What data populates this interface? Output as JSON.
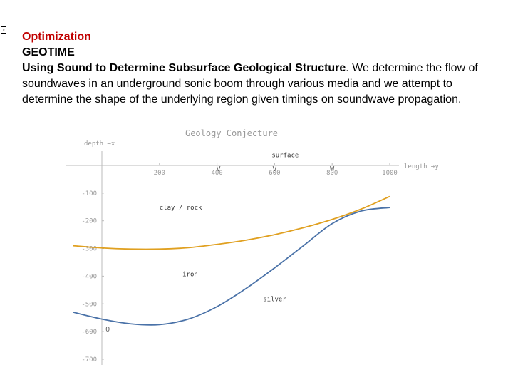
{
  "slide": {
    "bullet_icon": "square-bullet-icon",
    "title": "Optimization",
    "subtitle": "GEOTIME",
    "heading": "Using Sound to Determine Subsurface Geological Structure",
    "body": ". We determine the flow of soundwaves in an underground sonic boom through various media and we attempt to determine the shape of the underlying region given timings on soundwave propagation.",
    "colors": {
      "title": "#c00000",
      "orange_curve": "#e0a020",
      "blue_curve": "#4a72a8",
      "axis": "#999999"
    }
  },
  "chart_data": {
    "type": "line",
    "title": "Geology Conjecture",
    "xlabel": "length →y",
    "ylabel": "depth →x",
    "xlim": [
      -120,
      1000
    ],
    "ylim": [
      -720,
      20
    ],
    "x_ticks": [
      200,
      400,
      600,
      800,
      1000
    ],
    "x_tick_labels": [
      "200",
      "400",
      "600",
      "800",
      "1000"
    ],
    "y_ticks": [
      -100,
      -200,
      -300,
      -400,
      -500,
      -600,
      -700
    ],
    "y_tick_labels": [
      "-100",
      "-200",
      "-300",
      "-400",
      "-500",
      "-600",
      "-700"
    ],
    "series": [
      {
        "color": "#e0a020",
        "x": [
          -100,
          0,
          100,
          200,
          300,
          400,
          500,
          600,
          700,
          800,
          900,
          1000
        ],
        "y": [
          -290,
          -298,
          -302,
          -302,
          -297,
          -285,
          -270,
          -250,
          -225,
          -195,
          -158,
          -112
        ]
      },
      {
        "color": "#4a72a8",
        "x": [
          -100,
          0,
          100,
          200,
          300,
          400,
          500,
          600,
          700,
          800,
          900,
          1000
        ],
        "y": [
          -530,
          -555,
          -572,
          -575,
          -555,
          -510,
          -445,
          -370,
          -290,
          -210,
          -165,
          -152
        ]
      }
    ],
    "region_labels": [
      {
        "text": "surface",
        "x": 590,
        "y": 30
      },
      {
        "text": "clay / rock",
        "x": 200,
        "y": -160
      },
      {
        "text": "iron",
        "x": 280,
        "y": -400
      },
      {
        "text": "silver",
        "x": 560,
        "y": -490
      }
    ],
    "markers": [
      {
        "symbol": "V",
        "x": 405,
        "y": -20
      },
      {
        "symbol": "V",
        "x": 600,
        "y": -20
      },
      {
        "symbol": "W",
        "x": 800,
        "y": -20
      },
      {
        "symbol": "O",
        "x": 20,
        "y": -600
      }
    ]
  }
}
